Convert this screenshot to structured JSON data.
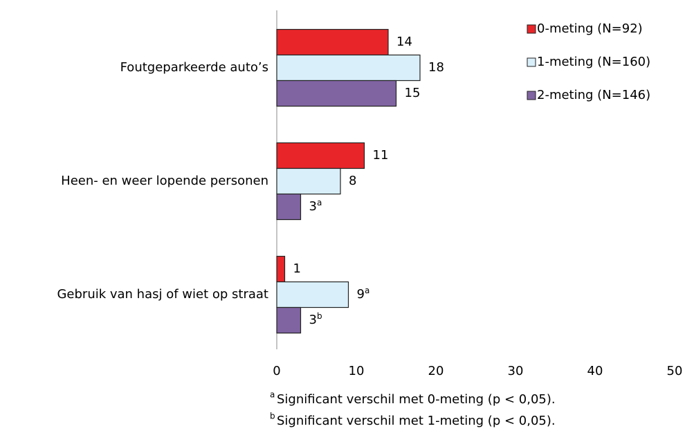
{
  "chart_data": {
    "type": "bar",
    "orientation": "horizontal",
    "categories": [
      "Foutgeparkeerde auto’s",
      "Heen- en weer lopende personen",
      "Gebruik van hasj of wiet op straat"
    ],
    "series": [
      {
        "name": "0-meting (N=92)",
        "color": "#e8262a",
        "values": [
          14,
          11,
          1
        ],
        "value_notes": [
          null,
          null,
          null
        ]
      },
      {
        "name": "1-meting (N=160)",
        "color": "#d9f0fb",
        "values": [
          18,
          8,
          9
        ],
        "value_notes": [
          null,
          null,
          "a"
        ]
      },
      {
        "name": "2-meting (N=146)",
        "color": "#8064a2",
        "values": [
          15,
          3,
          3
        ],
        "value_notes": [
          null,
          "a",
          "b"
        ]
      }
    ],
    "xlim": [
      0,
      50
    ],
    "xticks": [
      0,
      10,
      20,
      30,
      40,
      50
    ],
    "grid": false,
    "legend": "top-right",
    "footnotes": [
      {
        "mark": "a",
        "text": "Significant verschil met 0-meting (p < 0,05)."
      },
      {
        "mark": "b",
        "text": "Significant verschil met 1-meting (p < 0,05)."
      }
    ]
  }
}
